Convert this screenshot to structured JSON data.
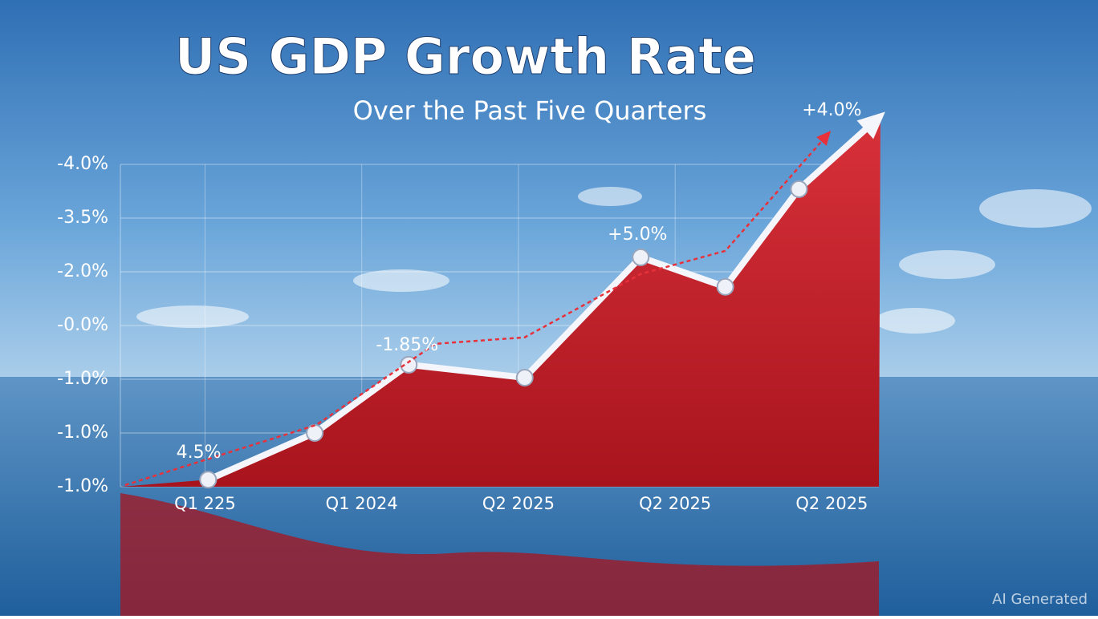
{
  "chart_data": {
    "type": "area",
    "title": "US GDP Growth Rate",
    "subtitle": "Over the Past Five Quarters",
    "watermark": "AI Generated",
    "xlim": [
      -0.54,
      4.3
    ],
    "xticks": [
      {
        "value": 0,
        "label": "Q1 225"
      },
      {
        "value": 1,
        "label": "Q1 2024"
      },
      {
        "value": 2,
        "label": "Q2 2025"
      },
      {
        "value": 3,
        "label": "Q2 2025"
      },
      {
        "value": 4,
        "label": "Q2 2025"
      }
    ],
    "ylim": [
      0,
      6
    ],
    "yticks": [
      {
        "value": 6,
        "label": "-4.0%"
      },
      {
        "value": 5,
        "label": "-3.5%"
      },
      {
        "value": 4,
        "label": "-2.0%"
      },
      {
        "value": 3,
        "label": "-0.0%"
      },
      {
        "value": 2,
        "label": "-1.0%"
      },
      {
        "value": 1,
        "label": "-1.0%"
      },
      {
        "value": 0,
        "label": "-1.0%"
      }
    ],
    "grid": true,
    "series": [
      {
        "color": "#c8202a",
        "line_color": "#f4f6fb",
        "style": "solid",
        "x": [
          0.02,
          0.7,
          1.3,
          2.04,
          2.78,
          3.32,
          3.79,
          4.31
        ],
        "values": [
          0.13,
          1.0,
          2.27,
          2.03,
          4.27,
          3.72,
          5.54,
          6.9
        ]
      },
      {
        "color": "#e8313a",
        "style": "dashed",
        "x": [
          -0.51,
          0.71,
          1.47,
          2.04,
          2.78,
          3.32,
          3.98
        ],
        "values": [
          0.03,
          1.15,
          2.66,
          2.78,
          3.96,
          4.39,
          6.58
        ]
      }
    ],
    "annotations": [
      {
        "text": "4.5%",
        "x": -0.04,
        "y": 0.63
      },
      {
        "text": "-1.85%",
        "x": 1.29,
        "y": 2.63
      },
      {
        "text": "+5.0%",
        "x": 2.76,
        "y": 4.69
      },
      {
        "text": "+4.0%",
        "x": 4.0,
        "y": 7.0
      }
    ]
  }
}
